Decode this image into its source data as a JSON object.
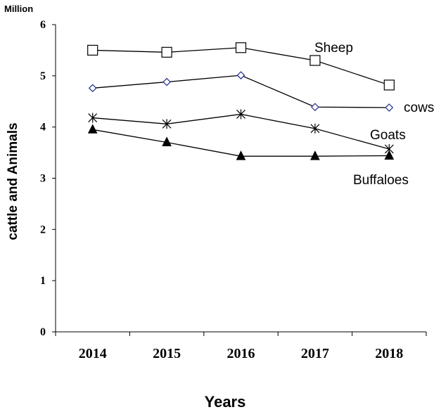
{
  "chart_data": {
    "type": "line",
    "title": "",
    "unit_label": "Million",
    "xlabel": "Years",
    "ylabel": "cattle and Animals",
    "categories": [
      "2014",
      "2015",
      "2016",
      "2017",
      "2018"
    ],
    "ylim": [
      0,
      6
    ],
    "y_ticks": [
      "0",
      "1",
      "2",
      "3",
      "4",
      "5",
      "6"
    ],
    "grid": false,
    "legend": "inline labels at line ends",
    "series": [
      {
        "name": "Sheep",
        "marker": "open-square",
        "values": [
          5.5,
          5.46,
          5.55,
          5.3,
          4.82
        ]
      },
      {
        "name": "cows",
        "marker": "open-diamond",
        "values": [
          4.76,
          4.88,
          5.01,
          4.39,
          4.38
        ]
      },
      {
        "name": "Goats",
        "marker": "asterisk",
        "values": [
          4.18,
          4.06,
          4.25,
          3.97,
          3.57
        ]
      },
      {
        "name": "Buffaloes",
        "marker": "filled-triangle",
        "values": [
          3.95,
          3.7,
          3.43,
          3.43,
          3.44
        ]
      }
    ],
    "colors": {
      "line": "#000000",
      "diamond": "#1f2a8c",
      "background": "#ffffff"
    }
  }
}
